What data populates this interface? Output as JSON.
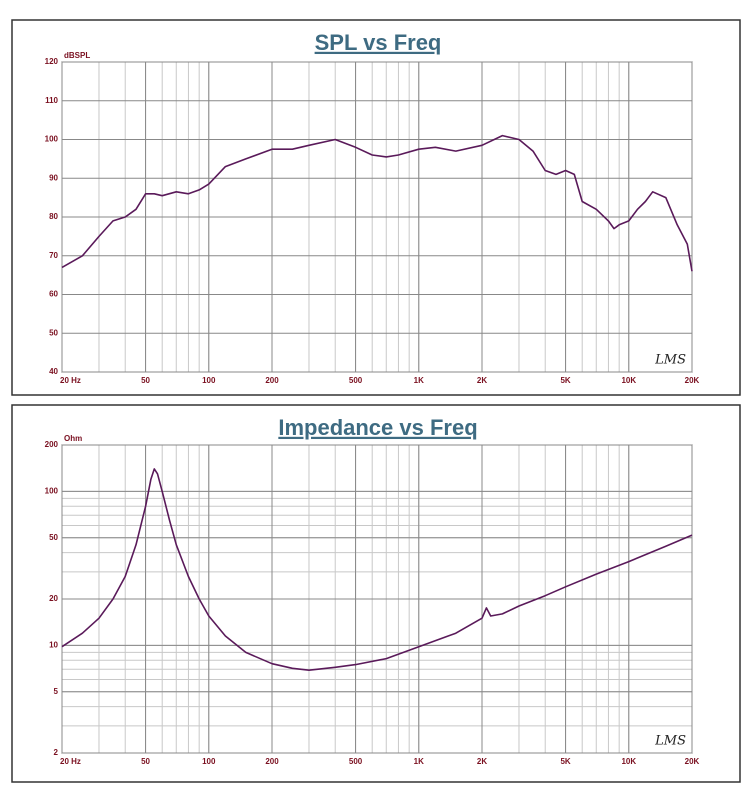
{
  "chart_data": [
    {
      "type": "line",
      "title": "SPL vs Freq",
      "y_label": "dBSPL",
      "watermark": "LMS",
      "xscale": "log",
      "yscale": "linear",
      "grid": true,
      "minor_grid": true,
      "color": "#5a1a5a",
      "xlim": [
        20,
        20000
      ],
      "xticks": [
        {
          "value": 20,
          "label": "20 Hz"
        },
        50,
        100,
        200,
        500,
        {
          "value": 1000,
          "label": "1K"
        },
        {
          "value": 2000,
          "label": "2K"
        },
        {
          "value": 5000,
          "label": "5K"
        },
        {
          "value": 10000,
          "label": "10K"
        },
        {
          "value": 20000,
          "label": "20K"
        }
      ],
      "ylim": [
        40,
        120
      ],
      "yticks": [
        40,
        50,
        60,
        70,
        80,
        90,
        100,
        110,
        120
      ],
      "x": [
        20,
        25,
        30,
        35,
        40,
        45,
        50,
        55,
        60,
        70,
        80,
        90,
        100,
        120,
        150,
        200,
        250,
        300,
        400,
        500,
        600,
        700,
        800,
        1000,
        1200,
        1500,
        2000,
        2500,
        3000,
        3500,
        4000,
        4500,
        5000,
        5500,
        6000,
        7000,
        8000,
        8500,
        9000,
        10000,
        11000,
        12000,
        13000,
        15000,
        17000,
        19000,
        20000
      ],
      "values": [
        67,
        70,
        75,
        79,
        80,
        82,
        86,
        86,
        85.5,
        86.5,
        86,
        87,
        88.5,
        93,
        95,
        97.5,
        97.5,
        98.5,
        100,
        98,
        96,
        95.5,
        96,
        97.5,
        98,
        97,
        98.5,
        101,
        100,
        97,
        92,
        91,
        92,
        91,
        84,
        82,
        79,
        77,
        78,
        79,
        82,
        84,
        86.5,
        85,
        78,
        73,
        66
      ]
    },
    {
      "type": "line",
      "title": "Impedance vs Freq",
      "y_label": "Ohm",
      "watermark": "LMS",
      "xscale": "log",
      "yscale": "log",
      "grid": true,
      "minor_grid": true,
      "color": "#5a1a5a",
      "xlim": [
        20,
        20000
      ],
      "xticks": [
        {
          "value": 20,
          "label": "20 Hz"
        },
        50,
        100,
        200,
        500,
        {
          "value": 1000,
          "label": "1K"
        },
        {
          "value": 2000,
          "label": "2K"
        },
        {
          "value": 5000,
          "label": "5K"
        },
        {
          "value": 10000,
          "label": "10K"
        },
        {
          "value": 20000,
          "label": "20K"
        }
      ],
      "ylim": [
        2,
        200
      ],
      "yticks": [
        2,
        5,
        10,
        20,
        50,
        100,
        200
      ],
      "x": [
        20,
        25,
        30,
        35,
        40,
        45,
        50,
        53,
        55,
        57,
        60,
        65,
        70,
        80,
        90,
        100,
        120,
        150,
        200,
        250,
        300,
        400,
        500,
        700,
        1000,
        1500,
        2000,
        2100,
        2200,
        2500,
        3000,
        4000,
        5000,
        7000,
        10000,
        15000,
        20000
      ],
      "values": [
        9.8,
        12,
        15,
        20,
        28,
        45,
        80,
        120,
        140,
        130,
        100,
        65,
        45,
        28,
        20,
        15.5,
        11.5,
        9,
        7.6,
        7.1,
        6.9,
        7.2,
        7.5,
        8.2,
        9.8,
        12,
        15,
        17.5,
        15.5,
        16,
        18,
        21,
        24,
        29,
        35,
        44,
        52
      ]
    }
  ]
}
